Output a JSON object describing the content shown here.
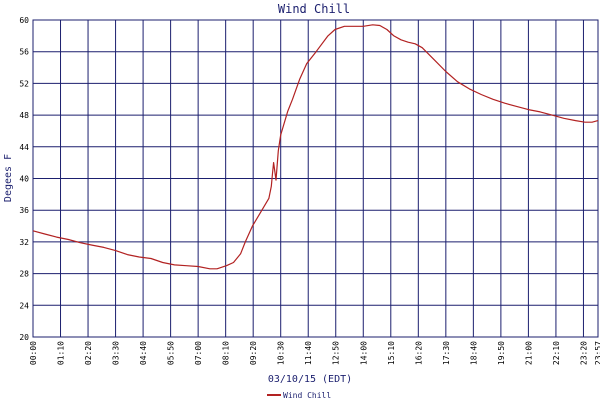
{
  "chart_data": {
    "type": "line",
    "title": "Wind Chill",
    "xlabel": "03/10/15 (EDT)",
    "ylabel": "Degees F",
    "ylim": [
      20,
      60
    ],
    "y_ticks": [
      20,
      24,
      28,
      32,
      36,
      40,
      44,
      48,
      52,
      56,
      60
    ],
    "x_range_hours": [
      0,
      23.95
    ],
    "x_ticks": [
      "00:00",
      "01:10",
      "02:20",
      "03:30",
      "04:40",
      "05:50",
      "07:00",
      "08:10",
      "09:20",
      "10:30",
      "11:40",
      "12:50",
      "14:00",
      "15:10",
      "16:20",
      "17:30",
      "18:40",
      "19:50",
      "21:00",
      "22:10",
      "23:20",
      "23:57"
    ],
    "x_tick_hours": [
      0,
      1.1667,
      2.3333,
      3.5,
      4.6667,
      5.8333,
      7,
      8.1667,
      9.3333,
      10.5,
      11.6667,
      12.8333,
      14,
      15.1667,
      16.3333,
      17.5,
      18.6667,
      19.8333,
      21,
      22.1667,
      23.3333,
      23.95
    ],
    "grid": true,
    "legend_position": "bottom-left",
    "series": [
      {
        "name": "Wind Chill",
        "color": "#b22222",
        "x": [
          0,
          0.5,
          1.0,
          1.5,
          2.0,
          2.5,
          3.0,
          3.5,
          4.0,
          4.5,
          5.0,
          5.5,
          6.0,
          6.5,
          7.0,
          7.5,
          7.8,
          8.2,
          8.5,
          8.8,
          9.0,
          9.3,
          9.6,
          10.0,
          10.1,
          10.15,
          10.2,
          10.3,
          10.4,
          10.5,
          10.8,
          11.0,
          11.3,
          11.6,
          12.0,
          12.5,
          12.8,
          13.2,
          13.6,
          14.0,
          14.4,
          14.7,
          15.0,
          15.3,
          15.6,
          15.9,
          16.2,
          16.5,
          17.0,
          17.5,
          18.0,
          18.5,
          19.0,
          19.5,
          20.0,
          20.5,
          21.0,
          21.5,
          22.0,
          22.5,
          23.0,
          23.4,
          23.7,
          23.95
        ],
        "y": [
          33.4,
          33.0,
          32.6,
          32.3,
          31.9,
          31.6,
          31.3,
          30.9,
          30.4,
          30.1,
          29.9,
          29.4,
          29.1,
          29.0,
          28.9,
          28.6,
          28.6,
          29.0,
          29.4,
          30.5,
          32.0,
          34.0,
          35.5,
          37.5,
          39.0,
          40.5,
          42.0,
          39.8,
          43.5,
          45.5,
          48.5,
          50.0,
          52.5,
          54.5,
          56.0,
          58.0,
          58.8,
          59.2,
          59.2,
          59.2,
          59.4,
          59.3,
          58.8,
          58.0,
          57.5,
          57.2,
          57.0,
          56.5,
          55.0,
          53.5,
          52.2,
          51.3,
          50.6,
          50.0,
          49.5,
          49.1,
          48.7,
          48.4,
          48.0,
          47.6,
          47.3,
          47.1,
          47.1,
          47.3
        ]
      }
    ]
  }
}
